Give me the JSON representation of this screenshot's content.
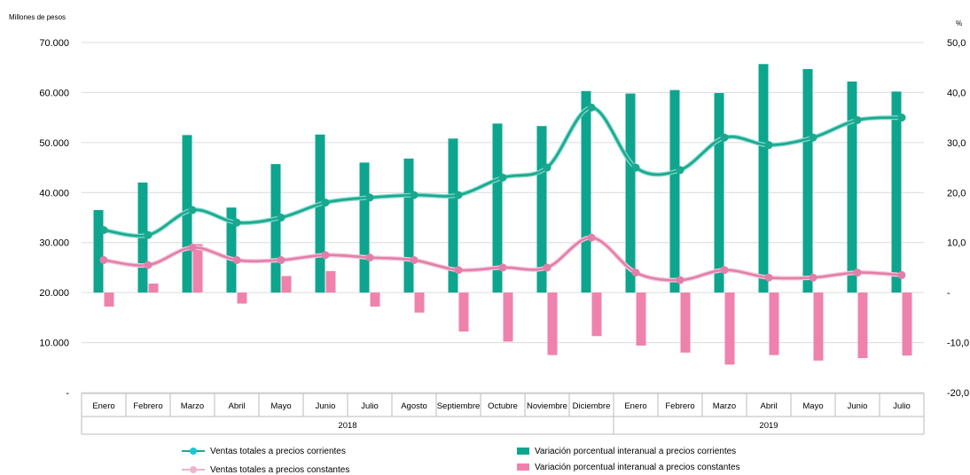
{
  "chart_data": {
    "type": "bar+line",
    "left_axis_unit": "Millones de pesos",
    "right_axis_unit": "%",
    "left_ylim": [
      0,
      70000
    ],
    "right_ylim": [
      -20,
      50
    ],
    "left_ticks": [
      "-",
      "10.000",
      "20.000",
      "30.000",
      "40.000",
      "50.000",
      "60.000",
      "70.000"
    ],
    "right_ticks": [
      "-20,0",
      "-10,0",
      "-",
      "10,0",
      "20,0",
      "30,0",
      "40,0",
      "50,0"
    ],
    "grid": true,
    "categories": [
      "Enero",
      "Febrero",
      "Marzo",
      "Abril",
      "Mayo",
      "Junio",
      "Julio",
      "Agosto",
      "Septiembre",
      "Octubre",
      "Noviembre",
      "Diciembre",
      "Enero",
      "Febrero",
      "Marzo",
      "Abril",
      "Mayo",
      "Junio",
      "Julio"
    ],
    "years": [
      {
        "label": "2018",
        "start": 0,
        "end": 11
      },
      {
        "label": "2019",
        "start": 12,
        "end": 18
      }
    ],
    "series": [
      {
        "name": "Ventas totales a precios corrientes",
        "kind": "line",
        "axis": "left",
        "color": "#1aa88e",
        "values": [
          32500,
          31500,
          36500,
          34000,
          35000,
          38000,
          39000,
          39500,
          39500,
          43000,
          45000,
          57000,
          45000,
          44500,
          51000,
          49500,
          51000,
          54500,
          55000
        ]
      },
      {
        "name": "Ventas totales a precios constantes",
        "kind": "line",
        "axis": "left",
        "color": "#e27fa9",
        "values": [
          26500,
          25500,
          29000,
          26500,
          26500,
          27500,
          27000,
          26500,
          24500,
          25000,
          25000,
          31000,
          24000,
          22500,
          24500,
          23000,
          23000,
          24000,
          23500
        ]
      },
      {
        "name": "Variación porcentual interanual a precios corrientes",
        "kind": "bar",
        "axis": "right",
        "color": "#0ea58e",
        "values": [
          16.5,
          22.0,
          31.5,
          17.0,
          25.7,
          31.6,
          26.0,
          26.8,
          30.8,
          33.8,
          33.3,
          40.3,
          39.8,
          40.5,
          39.9,
          45.7,
          44.7,
          42.2,
          40.2
        ]
      },
      {
        "name": "Variación porcentual interanual a precios constantes",
        "kind": "bar",
        "axis": "right",
        "color": "#ee82ad",
        "values": [
          -2.8,
          1.8,
          9.7,
          -2.2,
          3.3,
          4.3,
          -2.8,
          -4.0,
          -7.8,
          -9.8,
          -12.5,
          -8.7,
          -10.6,
          -12.0,
          -14.4,
          -12.5,
          -13.6,
          -13.1,
          -12.6
        ]
      }
    ],
    "legend_placement": "bottom"
  }
}
